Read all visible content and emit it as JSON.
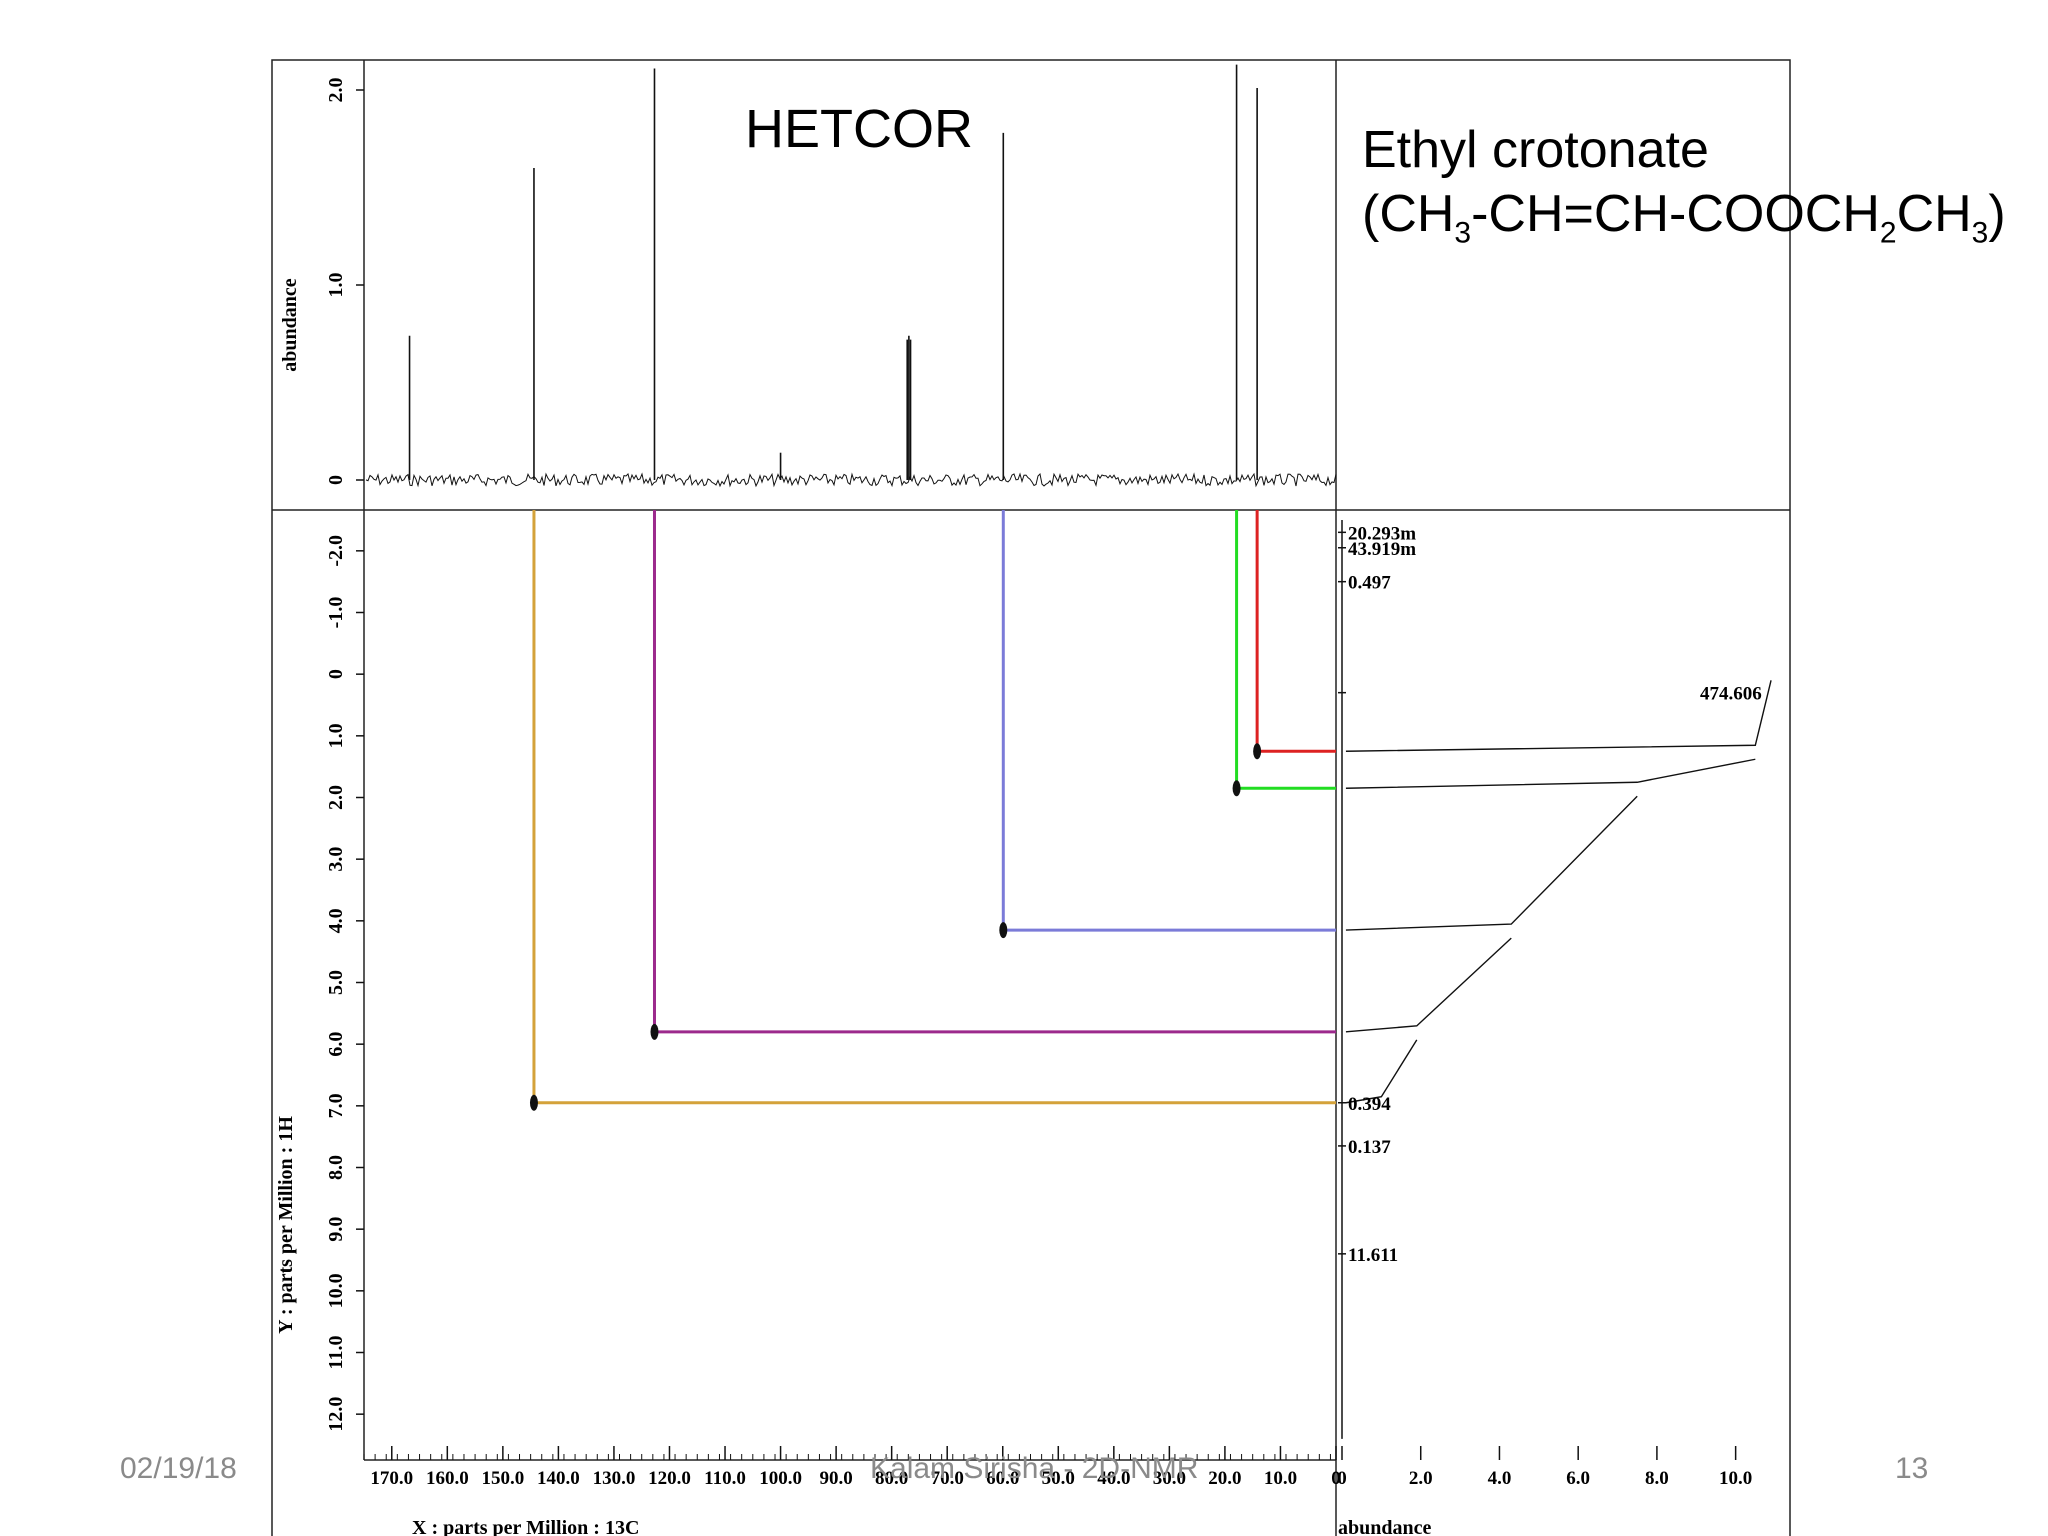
{
  "slide": {
    "title": "HETCOR",
    "compound_name": "Ethyl crotonate",
    "formula_parts": [
      "(CH",
      "3",
      "-CH=CH-COOCH",
      "2",
      "CH",
      "3",
      ")"
    ],
    "footer_date": "02/19/18",
    "footer_author": "Kalam Sirisha - 2D-NMR",
    "page_number": "13"
  },
  "chart_data": [
    {
      "id": "top-13c-projection",
      "type": "line",
      "ylabel": "abundance",
      "xlim": [
        175.0,
        0.0
      ],
      "ylim": [
        -0.05,
        2.2
      ],
      "yticks": [
        "2.0",
        "1.0",
        "0"
      ],
      "peaks": [
        {
          "x": 166.8,
          "y": 0.74
        },
        {
          "x": 144.4,
          "y": 1.6
        },
        {
          "x": 122.7,
          "y": 2.11
        },
        {
          "x": 100.0,
          "y": 0.14
        },
        {
          "x": 77.2,
          "y": 0.72
        },
        {
          "x": 76.9,
          "y": 0.74
        },
        {
          "x": 76.6,
          "y": 0.72
        },
        {
          "x": 59.9,
          "y": 1.78
        },
        {
          "x": 17.9,
          "y": 2.13
        },
        {
          "x": 14.2,
          "y": 2.01
        }
      ]
    },
    {
      "id": "hetcor-2d",
      "type": "scatter",
      "xlabel": "X : parts per Million : 13C",
      "ylabel": "Y : parts per Million : 1H",
      "xlim": [
        175.0,
        0.0
      ],
      "ylim": [
        12.5,
        -2.5
      ],
      "xticks": [
        "170.0",
        "160.0",
        "150.0",
        "140.0",
        "130.0",
        "120.0",
        "110.0",
        "100.0",
        "90.0",
        "80.0",
        "70.0",
        "60.0",
        "50.0",
        "40.0",
        "30.0",
        "20.0",
        "10.0",
        "0"
      ],
      "yticks": [
        "-2.0",
        "-1.0",
        "0",
        "1.0",
        "2.0",
        "3.0",
        "4.0",
        "5.0",
        "6.0",
        "7.0",
        "8.0",
        "9.0",
        "10.0",
        "11.0",
        "12.0"
      ],
      "correlations": [
        {
          "c": 144.4,
          "h": 6.95,
          "color": "#d4a23a"
        },
        {
          "c": 122.7,
          "h": 5.8,
          "color": "#9c2a8c"
        },
        {
          "c": 59.9,
          "h": 4.15,
          "color": "#7b7bd8"
        },
        {
          "c": 17.9,
          "h": 1.85,
          "color": "#22dd22"
        },
        {
          "c": 14.2,
          "h": 1.25,
          "color": "#dd2222"
        }
      ]
    },
    {
      "id": "right-1h-projection",
      "type": "line",
      "xlabel": "abundance",
      "xlim": [
        0,
        11
      ],
      "xticks": [
        "0",
        "2.0",
        "4.0",
        "6.0",
        "8.0",
        "10.0"
      ],
      "integral_labels": [
        {
          "h": -2.3,
          "text": "20.293m"
        },
        {
          "h": -2.05,
          "text": "43.919m"
        },
        {
          "h": -1.5,
          "text": "0.497"
        },
        {
          "h": 0.3,
          "text": "474.606"
        },
        {
          "h": 6.95,
          "text": "0.394"
        },
        {
          "h": 7.65,
          "text": "0.137"
        },
        {
          "h": 9.4,
          "text": "11.611"
        }
      ],
      "integral_steps": [
        {
          "h": 1.25,
          "level": 10.5
        },
        {
          "h": 1.85,
          "level": 7.5
        },
        {
          "h": 4.15,
          "level": 4.3
        },
        {
          "h": 5.8,
          "level": 1.9
        },
        {
          "h": 6.95,
          "level": 1.0
        }
      ]
    }
  ]
}
